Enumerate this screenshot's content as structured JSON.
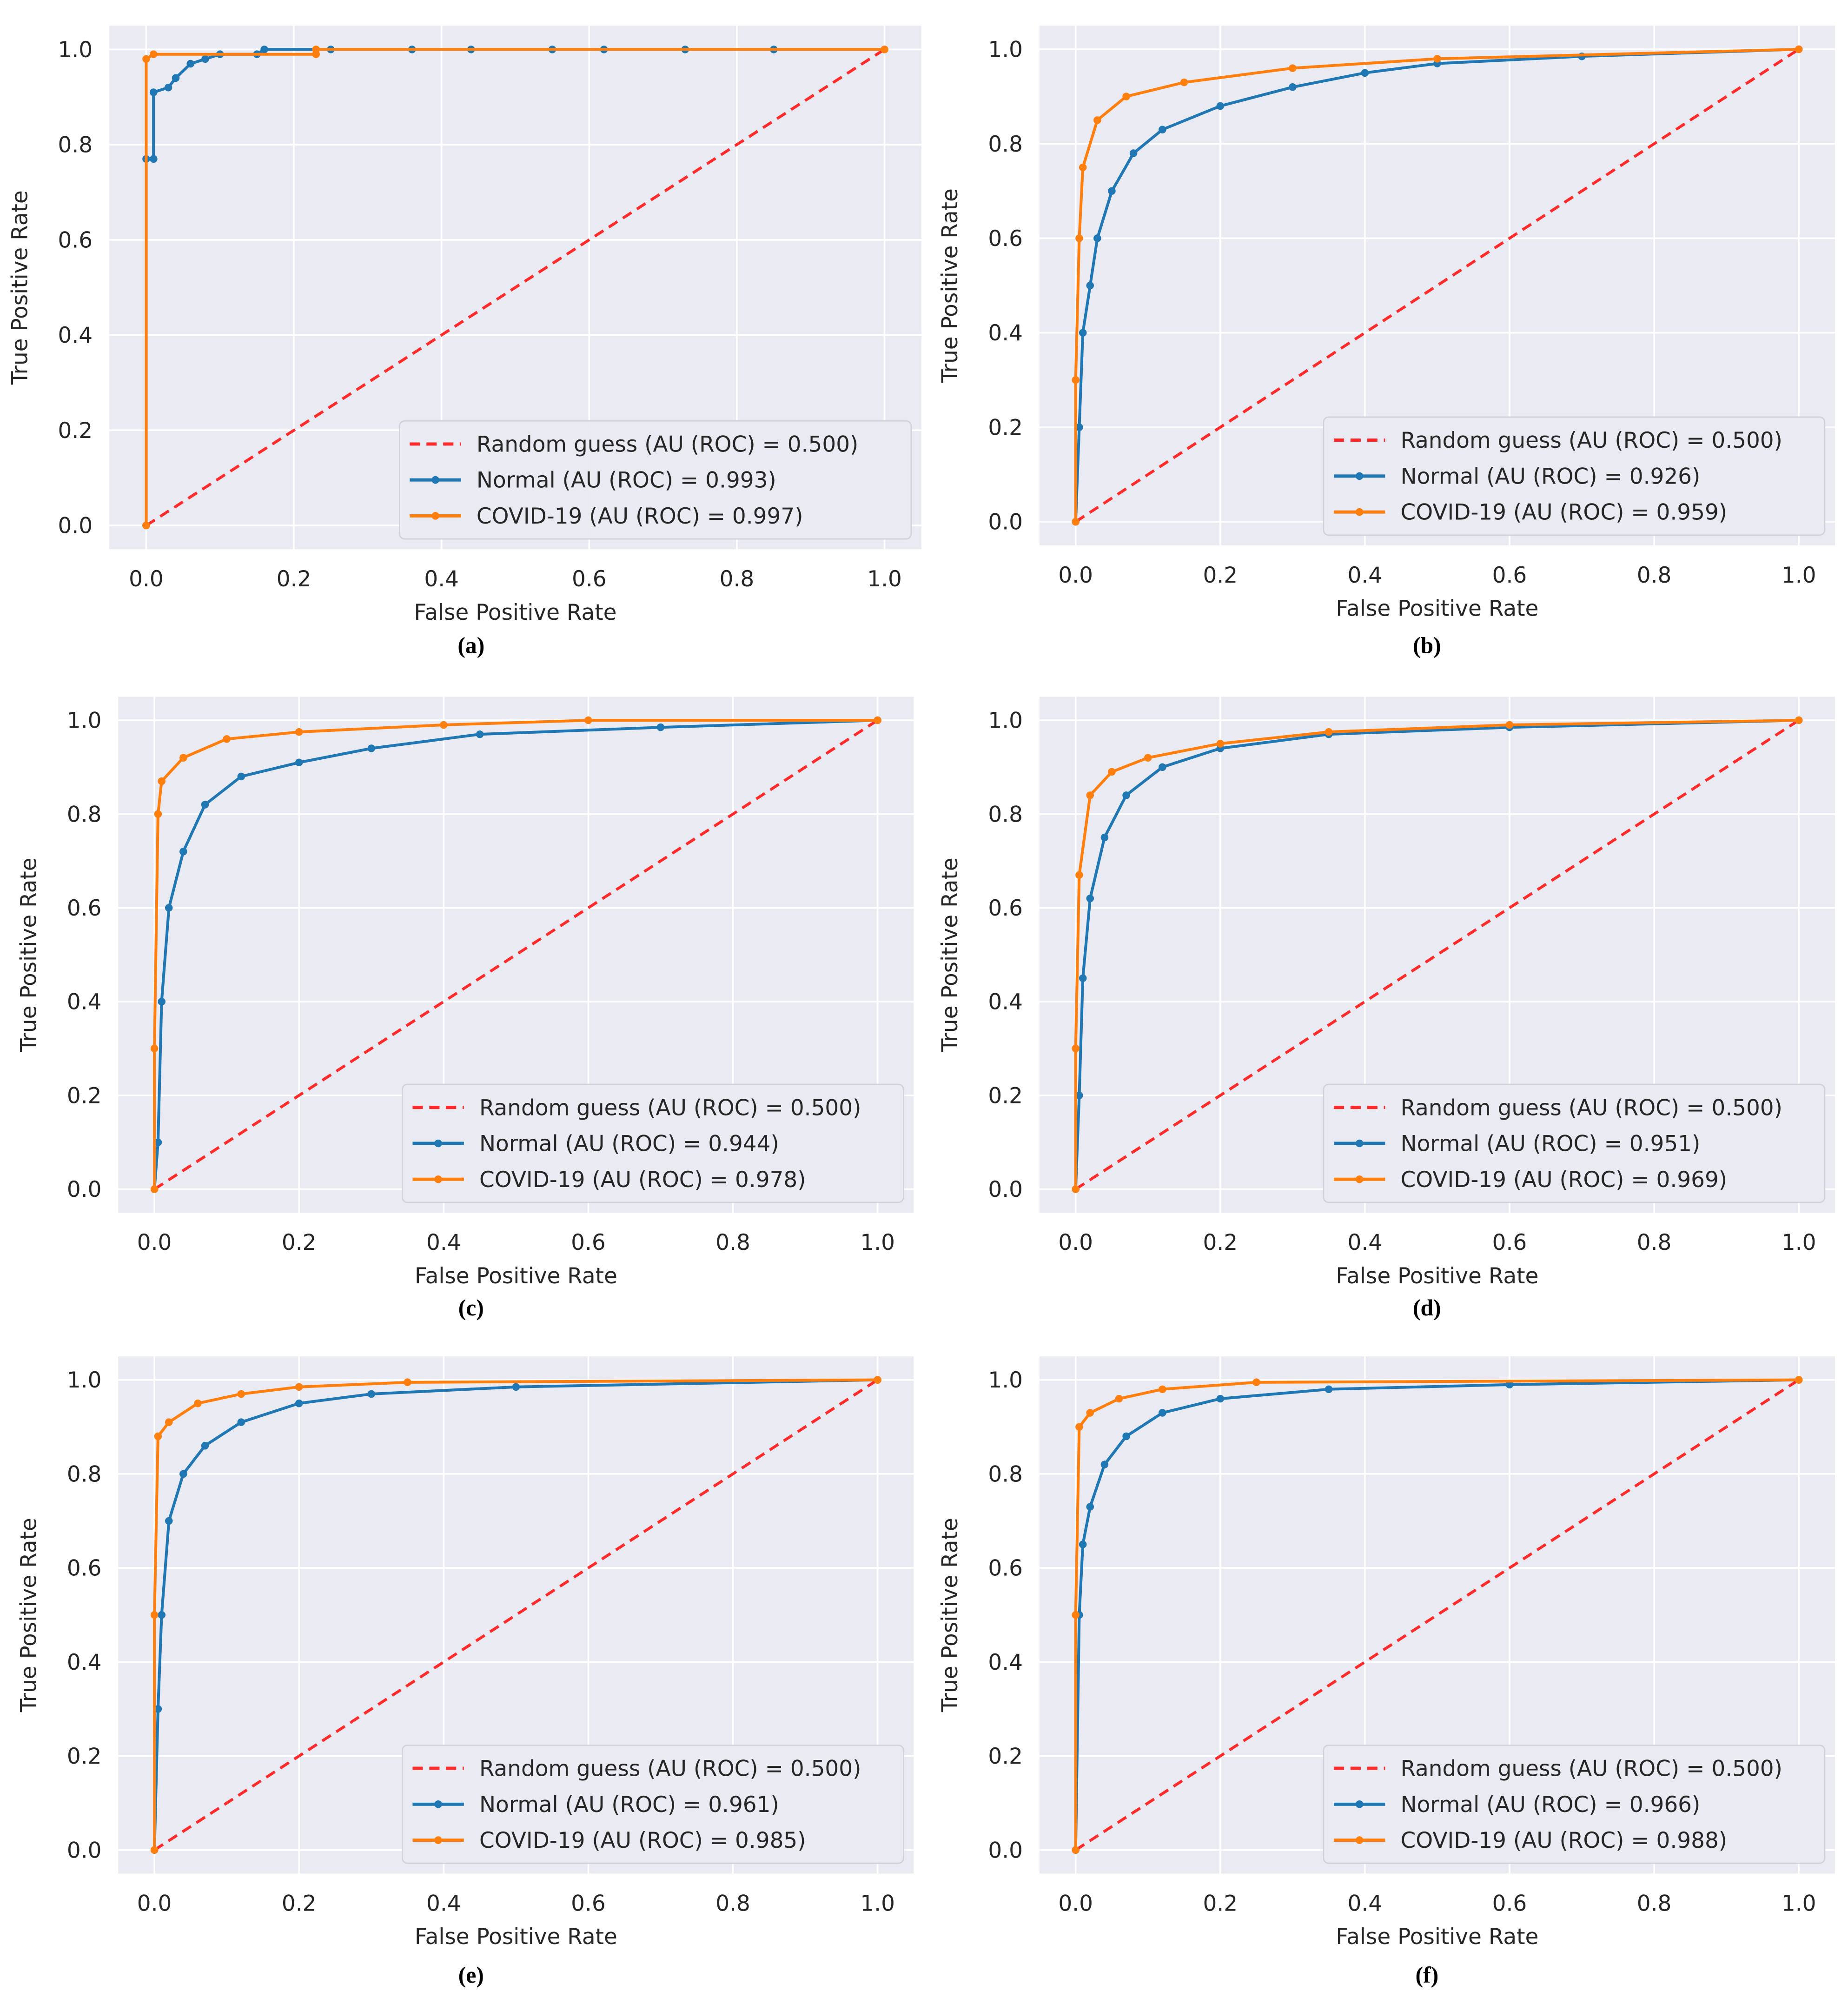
{
  "chart_data": [
    {
      "type": "line",
      "panel_label": "(a)",
      "xlabel": "False Positive Rate",
      "ylabel": "True Positive Rate",
      "xlim": [
        -0.05,
        1.05
      ],
      "ylim": [
        -0.05,
        1.05
      ],
      "grid": true,
      "legend_placement": "lower-right",
      "xticks": [
        "0.0",
        "0.2",
        "0.4",
        "0.6",
        "0.8",
        "1.0"
      ],
      "yticks": [
        "0.0",
        "0.2",
        "0.4",
        "0.6",
        "0.8",
        "1.0"
      ],
      "series": [
        {
          "name": "Random guess (AU (ROC) = 0.500)",
          "style": "dashed",
          "color": "#ff2a2a",
          "points": [
            [
              0,
              0
            ],
            [
              1,
              1
            ]
          ]
        },
        {
          "name": "Normal (AU (ROC) = 0.993)",
          "style": "marker-line",
          "color": "#1f77b4",
          "points": [
            [
              0,
              0
            ],
            [
              0,
              0.77
            ],
            [
              0.01,
              0.77
            ],
            [
              0.01,
              0.91
            ],
            [
              0.03,
              0.92
            ],
            [
              0.04,
              0.94
            ],
            [
              0.06,
              0.97
            ],
            [
              0.08,
              0.98
            ],
            [
              0.1,
              0.99
            ],
            [
              0.15,
              0.99
            ],
            [
              0.16,
              1.0
            ],
            [
              0.25,
              1
            ],
            [
              0.36,
              1
            ],
            [
              0.44,
              1
            ],
            [
              0.55,
              1
            ],
            [
              0.62,
              1
            ],
            [
              0.73,
              1
            ],
            [
              0.85,
              1
            ],
            [
              1,
              1
            ]
          ]
        },
        {
          "name": "COVID-19 (AU (ROC) = 0.997)",
          "style": "marker-line",
          "color": "#ff7f0e",
          "points": [
            [
              0,
              0
            ],
            [
              0,
              0.98
            ],
            [
              0.01,
              0.99
            ],
            [
              0.23,
              0.99
            ],
            [
              0.23,
              1.0
            ],
            [
              1,
              1
            ]
          ]
        }
      ]
    },
    {
      "type": "line",
      "panel_label": "(b)",
      "xlabel": "False Positive Rate",
      "ylabel": "True Positive Rate",
      "xlim": [
        -0.05,
        1.05
      ],
      "ylim": [
        -0.05,
        1.05
      ],
      "grid": true,
      "legend_placement": "lower-right",
      "xticks": [
        "0.0",
        "0.2",
        "0.4",
        "0.6",
        "0.8",
        "1.0"
      ],
      "yticks": [
        "0.0",
        "0.2",
        "0.4",
        "0.6",
        "0.8",
        "1.0"
      ],
      "series": [
        {
          "name": "Random guess (AU (ROC) = 0.500)",
          "style": "dashed",
          "color": "#ff2a2a",
          "points": [
            [
              0,
              0
            ],
            [
              1,
              1
            ]
          ]
        },
        {
          "name": "Normal (AU (ROC) = 0.926)",
          "style": "marker-line",
          "color": "#1f77b4",
          "points": [
            [
              0,
              0
            ],
            [
              0.005,
              0.2
            ],
            [
              0.01,
              0.4
            ],
            [
              0.02,
              0.5
            ],
            [
              0.03,
              0.6
            ],
            [
              0.05,
              0.7
            ],
            [
              0.08,
              0.78
            ],
            [
              0.12,
              0.83
            ],
            [
              0.2,
              0.88
            ],
            [
              0.3,
              0.92
            ],
            [
              0.4,
              0.95
            ],
            [
              0.5,
              0.97
            ],
            [
              0.7,
              0.985
            ],
            [
              1,
              1
            ]
          ]
        },
        {
          "name": "COVID-19 (AU (ROC) = 0.959)",
          "style": "marker-line",
          "color": "#ff7f0e",
          "points": [
            [
              0,
              0
            ],
            [
              0,
              0.3
            ],
            [
              0.005,
              0.6
            ],
            [
              0.01,
              0.75
            ],
            [
              0.03,
              0.85
            ],
            [
              0.07,
              0.9
            ],
            [
              0.15,
              0.93
            ],
            [
              0.3,
              0.96
            ],
            [
              0.5,
              0.98
            ],
            [
              1,
              1
            ]
          ]
        }
      ]
    },
    {
      "type": "line",
      "panel_label": "(c)",
      "xlabel": "False Positive Rate",
      "ylabel": "True Positive Rate",
      "xlim": [
        -0.05,
        1.05
      ],
      "ylim": [
        -0.05,
        1.05
      ],
      "grid": true,
      "legend_placement": "lower-right",
      "xticks": [
        "0.0",
        "0.2",
        "0.4",
        "0.6",
        "0.8",
        "1.0"
      ],
      "yticks": [
        "0.0",
        "0.2",
        "0.4",
        "0.6",
        "0.8",
        "1.0"
      ],
      "series": [
        {
          "name": "Random guess (AU (ROC) = 0.500)",
          "style": "dashed",
          "color": "#ff2a2a",
          "points": [
            [
              0,
              0
            ],
            [
              1,
              1
            ]
          ]
        },
        {
          "name": "Normal (AU (ROC) = 0.944)",
          "style": "marker-line",
          "color": "#1f77b4",
          "points": [
            [
              0,
              0
            ],
            [
              0.005,
              0.1
            ],
            [
              0.01,
              0.4
            ],
            [
              0.02,
              0.6
            ],
            [
              0.04,
              0.72
            ],
            [
              0.07,
              0.82
            ],
            [
              0.12,
              0.88
            ],
            [
              0.2,
              0.91
            ],
            [
              0.3,
              0.94
            ],
            [
              0.45,
              0.97
            ],
            [
              0.7,
              0.985
            ],
            [
              1,
              1
            ]
          ]
        },
        {
          "name": "COVID-19 (AU (ROC) = 0.978)",
          "style": "marker-line",
          "color": "#ff7f0e",
          "points": [
            [
              0,
              0
            ],
            [
              0,
              0.3
            ],
            [
              0.005,
              0.8
            ],
            [
              0.01,
              0.87
            ],
            [
              0.04,
              0.92
            ],
            [
              0.1,
              0.96
            ],
            [
              0.2,
              0.975
            ],
            [
              0.4,
              0.99
            ],
            [
              0.6,
              1
            ],
            [
              1,
              1
            ]
          ]
        }
      ]
    },
    {
      "type": "line",
      "panel_label": "(d)",
      "xlabel": "False Positive Rate",
      "ylabel": "True Positive Rate",
      "xlim": [
        -0.05,
        1.05
      ],
      "ylim": [
        -0.05,
        1.05
      ],
      "grid": true,
      "legend_placement": "lower-right",
      "xticks": [
        "0.0",
        "0.2",
        "0.4",
        "0.6",
        "0.8",
        "1.0"
      ],
      "yticks": [
        "0.0",
        "0.2",
        "0.4",
        "0.6",
        "0.8",
        "1.0"
      ],
      "series": [
        {
          "name": "Random guess (AU (ROC) = 0.500)",
          "style": "dashed",
          "color": "#ff2a2a",
          "points": [
            [
              0,
              0
            ],
            [
              1,
              1
            ]
          ]
        },
        {
          "name": "Normal (AU (ROC) = 0.951)",
          "style": "marker-line",
          "color": "#1f77b4",
          "points": [
            [
              0,
              0
            ],
            [
              0.005,
              0.2
            ],
            [
              0.01,
              0.45
            ],
            [
              0.02,
              0.62
            ],
            [
              0.04,
              0.75
            ],
            [
              0.07,
              0.84
            ],
            [
              0.12,
              0.9
            ],
            [
              0.2,
              0.94
            ],
            [
              0.35,
              0.97
            ],
            [
              0.6,
              0.985
            ],
            [
              1,
              1
            ]
          ]
        },
        {
          "name": "COVID-19 (AU (ROC) = 0.969)",
          "style": "marker-line",
          "color": "#ff7f0e",
          "points": [
            [
              0,
              0
            ],
            [
              0,
              0.3
            ],
            [
              0.005,
              0.67
            ],
            [
              0.02,
              0.84
            ],
            [
              0.05,
              0.89
            ],
            [
              0.1,
              0.92
            ],
            [
              0.2,
              0.95
            ],
            [
              0.35,
              0.975
            ],
            [
              0.6,
              0.99
            ],
            [
              1,
              1
            ]
          ]
        }
      ]
    },
    {
      "type": "line",
      "panel_label": "(e)",
      "xlabel": "False Positive Rate",
      "ylabel": "True Positive Rate",
      "xlim": [
        -0.05,
        1.05
      ],
      "ylim": [
        -0.05,
        1.05
      ],
      "grid": true,
      "legend_placement": "lower-right",
      "xticks": [
        "0.0",
        "0.2",
        "0.4",
        "0.6",
        "0.8",
        "1.0"
      ],
      "yticks": [
        "0.0",
        "0.2",
        "0.4",
        "0.6",
        "0.8",
        "1.0"
      ],
      "series": [
        {
          "name": "Random guess (AU (ROC) = 0.500)",
          "style": "dashed",
          "color": "#ff2a2a",
          "points": [
            [
              0,
              0
            ],
            [
              1,
              1
            ]
          ]
        },
        {
          "name": "Normal (AU (ROC) = 0.961)",
          "style": "marker-line",
          "color": "#1f77b4",
          "points": [
            [
              0,
              0
            ],
            [
              0.005,
              0.3
            ],
            [
              0.01,
              0.5
            ],
            [
              0.02,
              0.7
            ],
            [
              0.04,
              0.8
            ],
            [
              0.07,
              0.86
            ],
            [
              0.12,
              0.91
            ],
            [
              0.2,
              0.95
            ],
            [
              0.3,
              0.97
            ],
            [
              0.5,
              0.985
            ],
            [
              1,
              1
            ]
          ]
        },
        {
          "name": "COVID-19 (AU (ROC) = 0.985)",
          "style": "marker-line",
          "color": "#ff7f0e",
          "points": [
            [
              0,
              0
            ],
            [
              0,
              0.5
            ],
            [
              0.005,
              0.88
            ],
            [
              0.02,
              0.91
            ],
            [
              0.06,
              0.95
            ],
            [
              0.12,
              0.97
            ],
            [
              0.2,
              0.985
            ],
            [
              0.35,
              0.995
            ],
            [
              1,
              1
            ]
          ]
        }
      ]
    },
    {
      "type": "line",
      "panel_label": "(f)",
      "xlabel": "False Positive Rate",
      "ylabel": "True Positive Rate",
      "xlim": [
        -0.05,
        1.05
      ],
      "ylim": [
        -0.05,
        1.05
      ],
      "grid": true,
      "legend_placement": "lower-right",
      "xticks": [
        "0.0",
        "0.2",
        "0.4",
        "0.6",
        "0.8",
        "1.0"
      ],
      "yticks": [
        "0.0",
        "0.2",
        "0.4",
        "0.6",
        "0.8",
        "1.0"
      ],
      "series": [
        {
          "name": "Random guess (AU (ROC) = 0.500)",
          "style": "dashed",
          "color": "#ff2a2a",
          "points": [
            [
              0,
              0
            ],
            [
              1,
              1
            ]
          ]
        },
        {
          "name": "Normal (AU (ROC) = 0.966)",
          "style": "marker-line",
          "color": "#1f77b4",
          "points": [
            [
              0,
              0
            ],
            [
              0.005,
              0.5
            ],
            [
              0.01,
              0.65
            ],
            [
              0.02,
              0.73
            ],
            [
              0.04,
              0.82
            ],
            [
              0.07,
              0.88
            ],
            [
              0.12,
              0.93
            ],
            [
              0.2,
              0.96
            ],
            [
              0.35,
              0.98
            ],
            [
              0.6,
              0.99
            ],
            [
              1,
              1
            ]
          ]
        },
        {
          "name": "COVID-19 (AU (ROC) = 0.988)",
          "style": "marker-line",
          "color": "#ff7f0e",
          "points": [
            [
              0,
              0
            ],
            [
              0,
              0.5
            ],
            [
              0.005,
              0.9
            ],
            [
              0.02,
              0.93
            ],
            [
              0.06,
              0.96
            ],
            [
              0.12,
              0.98
            ],
            [
              0.25,
              0.995
            ],
            [
              1,
              1
            ]
          ]
        }
      ]
    }
  ]
}
